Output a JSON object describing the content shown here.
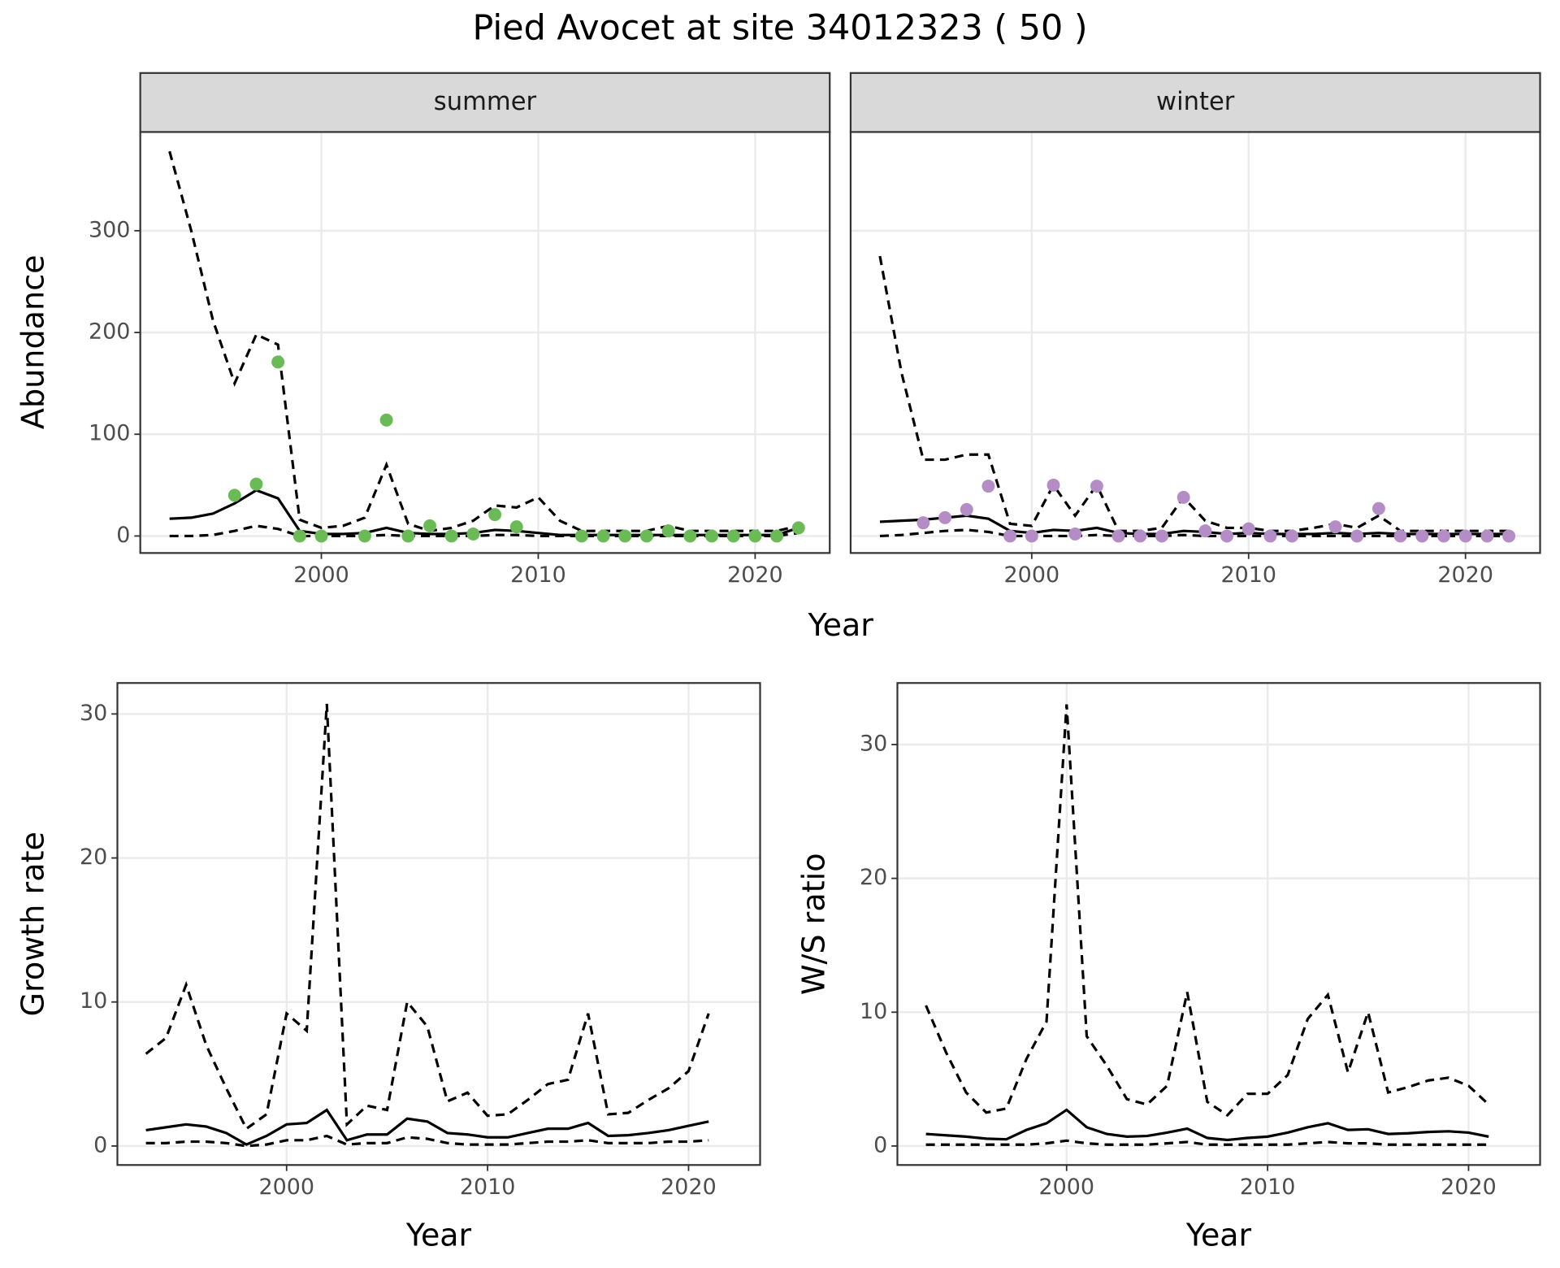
{
  "title": "Pied Avocet at site 34012323 ( 50 )",
  "chart_data": [
    {
      "type": "line",
      "facet": "summer",
      "xlabel": "Year",
      "ylabel": "Abundance",
      "xlim": [
        1991.65,
        2023.44
      ],
      "ylim": [
        -16.7,
        397
      ],
      "xticks": [
        2000,
        2010,
        2020
      ],
      "yticks": [
        0,
        100,
        200,
        300
      ],
      "ytick_labels": true,
      "grid": true,
      "x": [
        1993,
        1994,
        1995,
        1996,
        1997,
        1998,
        1999,
        2000,
        2001,
        2002,
        2003,
        2004,
        2005,
        2006,
        2007,
        2008,
        2009,
        2010,
        2011,
        2012,
        2013,
        2014,
        2015,
        2016,
        2017,
        2018,
        2019,
        2020,
        2021,
        2022
      ],
      "series": [
        {
          "color": "#000000",
          "dash": "dashed",
          "values": [
            378,
            300,
            212,
            150,
            198,
            188,
            16,
            8,
            10,
            18,
            70,
            12,
            5,
            8,
            15,
            30,
            28,
            38,
            15,
            5,
            5,
            5,
            5,
            10,
            5,
            5,
            5,
            5,
            5,
            10
          ]
        },
        {
          "color": "#000000",
          "dash": "solid",
          "values": [
            17,
            18,
            22,
            32,
            45,
            37,
            5,
            2,
            2,
            3,
            8,
            3,
            2,
            2,
            3,
            6,
            5,
            3,
            1,
            1,
            1,
            1,
            1,
            1,
            1,
            1,
            1,
            1,
            1,
            8
          ]
        },
        {
          "color": "#000000",
          "dash": "dashed",
          "values": [
            0,
            0,
            1,
            5,
            10,
            7,
            0,
            0,
            0,
            0,
            1,
            0,
            0,
            0,
            0,
            1,
            1,
            0,
            0,
            0,
            0,
            0,
            0,
            0,
            0,
            0,
            0,
            0,
            0,
            3
          ]
        },
        {
          "type": "scatter",
          "color": "#6abb55",
          "x": [
            1996,
            1997,
            1998,
            1999,
            2000,
            2002,
            2003,
            2004,
            2005,
            2006,
            2007,
            2008,
            2009,
            2012,
            2013,
            2014,
            2015,
            2016,
            2017,
            2018,
            2019,
            2020,
            2021,
            2022
          ],
          "values": [
            40,
            51,
            171,
            0,
            0,
            0,
            114,
            0,
            10,
            0,
            2,
            21,
            9,
            0,
            0,
            0,
            0,
            5,
            0,
            0,
            0,
            0,
            0,
            8
          ]
        }
      ]
    },
    {
      "type": "line",
      "facet": "winter",
      "xlim": [
        1991.65,
        2023.44
      ],
      "ylim": [
        -16.7,
        397
      ],
      "xticks": [
        2000,
        2010,
        2020
      ],
      "yticks": [
        0,
        100,
        200,
        300
      ],
      "ytick_labels": false,
      "grid": true,
      "x": [
        1993,
        1994,
        1995,
        1996,
        1997,
        1998,
        1999,
        2000,
        2001,
        2002,
        2003,
        2004,
        2005,
        2006,
        2007,
        2008,
        2009,
        2010,
        2011,
        2012,
        2013,
        2014,
        2015,
        2016,
        2017,
        2018,
        2019,
        2020,
        2021,
        2022
      ],
      "series": [
        {
          "color": "#000000",
          "dash": "dashed",
          "values": [
            275,
            160,
            75,
            75,
            80,
            80,
            12,
            10,
            50,
            20,
            50,
            5,
            5,
            8,
            38,
            15,
            8,
            8,
            5,
            5,
            8,
            12,
            8,
            20,
            5,
            5,
            5,
            5,
            5,
            5
          ]
        },
        {
          "color": "#000000",
          "dash": "solid",
          "values": [
            14,
            15,
            16,
            18,
            20,
            17,
            5,
            3,
            6,
            5,
            8,
            3,
            2,
            2,
            5,
            4,
            2,
            3,
            2,
            2,
            2,
            3,
            2,
            3,
            2,
            2,
            2,
            2,
            2,
            2
          ]
        },
        {
          "color": "#000000",
          "dash": "dashed",
          "values": [
            0,
            1,
            3,
            5,
            6,
            4,
            0,
            0,
            0,
            0,
            1,
            0,
            0,
            0,
            1,
            0,
            0,
            0,
            0,
            0,
            0,
            0,
            0,
            0,
            0,
            0,
            0,
            0,
            0,
            0
          ]
        },
        {
          "type": "scatter",
          "color": "#b48dc7",
          "x": [
            1995,
            1996,
            1997,
            1998,
            1999,
            2000,
            2001,
            2002,
            2003,
            2004,
            2005,
            2006,
            2007,
            2008,
            2009,
            2010,
            2011,
            2012,
            2014,
            2015,
            2016,
            2017,
            2018,
            2019,
            2020,
            2021,
            2022
          ],
          "values": [
            13,
            18,
            26,
            49,
            0,
            0,
            50,
            2,
            49,
            0,
            0,
            0,
            38,
            5,
            0,
            7,
            0,
            0,
            9,
            0,
            27,
            0,
            0,
            0,
            0,
            0,
            0
          ]
        }
      ]
    },
    {
      "type": "line",
      "xlabel": "Year",
      "ylabel": "Growth rate",
      "xlim": [
        1991.58,
        2023.56
      ],
      "ylim": [
        -1.32,
        32.15
      ],
      "xticks": [
        2000,
        2010,
        2020
      ],
      "yticks": [
        0,
        10,
        20,
        30
      ],
      "ytick_labels": true,
      "grid": true,
      "x": [
        1993,
        1994,
        1995,
        1996,
        1997,
        1998,
        1999,
        2000,
        2001,
        2002,
        2003,
        2004,
        2005,
        2006,
        2007,
        2008,
        2009,
        2010,
        2011,
        2012,
        2013,
        2014,
        2015,
        2016,
        2017,
        2018,
        2019,
        2020,
        2021
      ],
      "series": [
        {
          "color": "#000000",
          "dash": "dashed",
          "values": [
            6.4,
            7.5,
            11.2,
            7,
            4,
            1.2,
            2.2,
            9.2,
            8,
            30.7,
            1.5,
            2.8,
            2.5,
            10,
            8.3,
            3.1,
            3.7,
            2.1,
            2.2,
            3.2,
            4.3,
            4.6,
            9.2,
            2.2,
            2.3,
            3.2,
            4,
            5.2,
            9.2
          ]
        },
        {
          "color": "#000000",
          "dash": "solid",
          "values": [
            1.1,
            1.3,
            1.5,
            1.35,
            0.9,
            0.1,
            0.7,
            1.5,
            1.6,
            2.5,
            0.4,
            0.8,
            0.8,
            1.9,
            1.7,
            0.9,
            0.8,
            0.6,
            0.6,
            0.9,
            1.2,
            1.2,
            1.6,
            0.7,
            0.75,
            0.9,
            1.1,
            1.4,
            1.7
          ]
        },
        {
          "color": "#000000",
          "dash": "dashed",
          "values": [
            0.2,
            0.2,
            0.3,
            0.3,
            0.2,
            0,
            0.1,
            0.4,
            0.4,
            0.7,
            0.1,
            0.2,
            0.2,
            0.6,
            0.5,
            0.2,
            0.1,
            0.1,
            0.1,
            0.2,
            0.3,
            0.3,
            0.4,
            0.2,
            0.2,
            0.2,
            0.3,
            0.3,
            0.4
          ]
        }
      ]
    },
    {
      "type": "line",
      "xlabel": "Year",
      "ylabel": "W/S ratio",
      "xlim": [
        1991.58,
        2023.56
      ],
      "ylim": [
        -1.42,
        34.6
      ],
      "xticks": [
        2000,
        2010,
        2020
      ],
      "yticks": [
        0,
        10,
        20,
        30
      ],
      "ytick_labels": true,
      "grid": true,
      "x": [
        1993,
        1994,
        1995,
        1996,
        1997,
        1998,
        1999,
        2000,
        2001,
        2002,
        2003,
        2004,
        2005,
        2006,
        2007,
        2008,
        2009,
        2010,
        2011,
        2012,
        2013,
        2014,
        2015,
        2016,
        2017,
        2018,
        2019,
        2020,
        2021
      ],
      "series": [
        {
          "color": "#000000",
          "dash": "dashed",
          "values": [
            10.5,
            7,
            4,
            2.5,
            2.8,
            6.5,
            9.3,
            33,
            8.2,
            6,
            3.5,
            3.1,
            4.5,
            11.5,
            3.3,
            2.3,
            3.9,
            3.9,
            5.3,
            9.5,
            11.3,
            5.5,
            10,
            4,
            4.4,
            4.9,
            5.1,
            4.5,
            3.1
          ]
        },
        {
          "color": "#000000",
          "dash": "solid",
          "values": [
            0.9,
            0.8,
            0.7,
            0.55,
            0.5,
            1.2,
            1.7,
            2.7,
            1.4,
            0.9,
            0.7,
            0.75,
            1,
            1.3,
            0.6,
            0.45,
            0.6,
            0.7,
            1,
            1.4,
            1.7,
            1.2,
            1.25,
            0.9,
            0.95,
            1.05,
            1.1,
            1,
            0.7
          ]
        },
        {
          "color": "#000000",
          "dash": "dashed",
          "values": [
            0.1,
            0.1,
            0.1,
            0.1,
            0.1,
            0.1,
            0.2,
            0.4,
            0.2,
            0.1,
            0.1,
            0.1,
            0.2,
            0.3,
            0.1,
            0.1,
            0.1,
            0.1,
            0.1,
            0.2,
            0.3,
            0.2,
            0.2,
            0.1,
            0.1,
            0.1,
            0.1,
            0.1,
            0.1
          ]
        }
      ]
    }
  ]
}
